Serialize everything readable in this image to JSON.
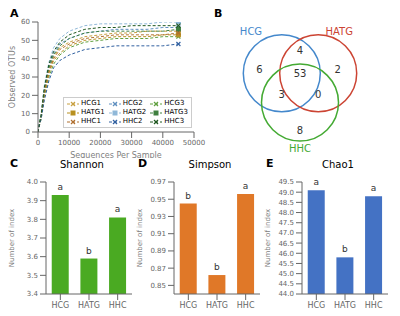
{
  "chart_data": [
    {
      "type": "line",
      "panel": "A",
      "xlabel": "Sequences Per Sample",
      "ylabel": "Observed OTUs",
      "x": [
        0,
        500,
        1000,
        2000,
        3500,
        5000,
        7000,
        10000,
        15000,
        20000,
        25000,
        30000,
        35000,
        40000,
        45000
      ],
      "xlim": [
        0,
        50000
      ],
      "xticks": [
        0,
        10000,
        20000,
        30000,
        40000,
        50000
      ],
      "ylim": [
        0,
        60
      ],
      "yticks": [
        0,
        10,
        20,
        30,
        40,
        50,
        60
      ],
      "legend": "lower right",
      "series": [
        {
          "name": "HCG1",
          "color": "#c8a040",
          "line_style": "dashed",
          "marker": "x",
          "values": [
            0,
            5,
            9,
            22,
            34,
            41,
            46,
            49,
            52,
            53,
            54,
            54,
            55,
            55,
            55
          ]
        },
        {
          "name": "HCG2",
          "color": "#6090c0",
          "line_style": "dashed",
          "marker": "x",
          "values": [
            0,
            5,
            9,
            23,
            36,
            43,
            48,
            51,
            54,
            55,
            56,
            56,
            56,
            57,
            57
          ]
        },
        {
          "name": "HCG3",
          "color": "#60a040",
          "line_style": "dashed",
          "marker": "x",
          "values": [
            0,
            4,
            7,
            19,
            30,
            37,
            42,
            46,
            49,
            50,
            51,
            51,
            51,
            52,
            52
          ]
        },
        {
          "name": "HATG1",
          "color": "#b89020",
          "line_style": "dashed",
          "marker": "square",
          "values": [
            0,
            4,
            8,
            20,
            32,
            39,
            43,
            47,
            50,
            51,
            52,
            52,
            52,
            53,
            53
          ]
        },
        {
          "name": "HATG2",
          "color": "#90b8d8",
          "line_style": "dashed",
          "marker": "square",
          "values": [
            0,
            6,
            10,
            25,
            38,
            46,
            51,
            55,
            58,
            59,
            59,
            59,
            59,
            60,
            60
          ]
        },
        {
          "name": "HATG3",
          "color": "#408040",
          "line_style": "dashed",
          "marker": "square",
          "values": [
            0,
            5,
            9,
            22,
            35,
            42,
            47,
            51,
            54,
            55,
            55,
            55,
            55,
            55,
            56
          ]
        },
        {
          "name": "HHC1",
          "color": "#b07030",
          "line_style": "dashed",
          "marker": "x",
          "values": [
            0,
            4,
            8,
            21,
            33,
            40,
            45,
            48,
            51,
            52,
            53,
            53,
            53,
            53,
            54
          ]
        },
        {
          "name": "HHC2",
          "color": "#3060a0",
          "line_style": "dashed",
          "marker": "x",
          "values": [
            0,
            4,
            7,
            17,
            28,
            35,
            39,
            42,
            45,
            46,
            47,
            47,
            47,
            47,
            48
          ]
        },
        {
          "name": "HHC3",
          "color": "#205820",
          "line_style": "dashed",
          "marker": "x",
          "values": [
            0,
            5,
            9,
            24,
            37,
            44,
            49,
            53,
            56,
            57,
            57,
            58,
            58,
            58,
            58
          ]
        }
      ]
    },
    {
      "type": "venn",
      "panel": "B",
      "series": [
        {
          "name": "HCG",
          "color": "#4488cc"
        },
        {
          "name": "HATG",
          "color": "#cc4433"
        },
        {
          "name": "HHC",
          "color": "#44aa33"
        }
      ],
      "regions": [
        {
          "sets": [
            "HCG"
          ],
          "value": 6
        },
        {
          "sets": [
            "HCG",
            "HATG"
          ],
          "value": 4
        },
        {
          "sets": [
            "HATG"
          ],
          "value": 2
        },
        {
          "sets": [
            "HCG",
            "HHC"
          ],
          "value": 3
        },
        {
          "sets": [
            "HATG",
            "HHC"
          ],
          "value": 0
        },
        {
          "sets": [
            "HCG",
            "HATG",
            "HHC"
          ],
          "value": 53
        },
        {
          "sets": [
            "HHC"
          ],
          "value": 8
        }
      ]
    },
    {
      "type": "bar",
      "panel": "C",
      "title": "Shannon",
      "ylabel": "Number of index",
      "categories": [
        "HCG",
        "HATG",
        "HHC"
      ],
      "values": [
        3.93,
        3.59,
        3.81
      ],
      "annotations": [
        "a",
        "b",
        "a"
      ],
      "ylim": [
        3.4,
        4.0
      ],
      "yticks": [
        3.4,
        3.5,
        3.6,
        3.7,
        3.8,
        3.9,
        {
          "value": 4.0,
          "label": "4.0"
        }
      ],
      "color": "#4aaa22"
    },
    {
      "type": "bar",
      "panel": "D",
      "title": "Simpson",
      "ylabel": "Number of index",
      "categories": [
        "HCG",
        "HATG",
        "HHC"
      ],
      "values": [
        0.945,
        0.862,
        0.956
      ],
      "annotations": [
        "b",
        "b",
        "a"
      ],
      "ylim": [
        0.84,
        0.97
      ],
      "yticks": [
        0.85,
        0.87,
        0.89,
        0.91,
        0.93,
        0.95,
        0.97
      ],
      "color": "#e07828"
    },
    {
      "type": "bar",
      "panel": "E",
      "title": "Chao1",
      "ylabel": "Number of index",
      "categories": [
        "HCG",
        "HATG",
        "HHC"
      ],
      "values": [
        49.1,
        45.8,
        48.8
      ],
      "annotations": [
        "a",
        "b",
        "a"
      ],
      "ylim": [
        44.0,
        49.5
      ],
      "yticks": [
        {
          "value": 44.0,
          "label": "44.0"
        },
        44.5,
        {
          "value": 45.0,
          "label": "45.0"
        },
        45.5,
        {
          "value": 46.0,
          "label": "46.0"
        },
        46.5,
        {
          "value": 47.0,
          "label": "47.0"
        },
        47.5,
        {
          "value": 48.0,
          "label": "48.0"
        },
        48.5,
        {
          "value": 49.0,
          "label": "49.0"
        },
        49.5
      ],
      "color": "#4472c4"
    }
  ]
}
